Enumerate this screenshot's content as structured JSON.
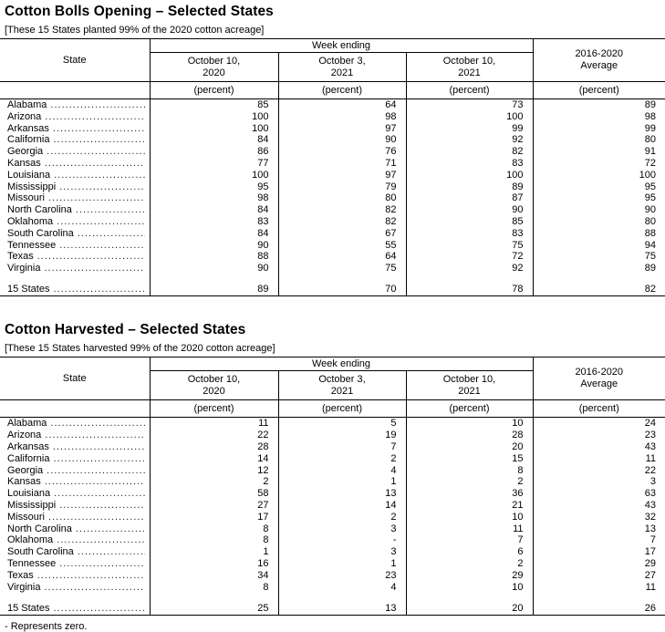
{
  "report": {
    "footnote": "- Represents zero."
  },
  "tables": [
    {
      "title": "Cotton Bolls Opening – Selected States",
      "subtitle": "[These 15 States planted 99% of the 2020 cotton acreage]",
      "header": {
        "state_label": "State",
        "week_ending_label": "Week ending",
        "date_columns": [
          "October 10,\n2020",
          "October 3,\n2021",
          "October 10,\n2021"
        ],
        "average_label": "2016-2020\nAverage",
        "unit_label": "(percent)"
      },
      "rows": [
        {
          "state": "Alabama",
          "values": [
            "85",
            "64",
            "73",
            "89"
          ]
        },
        {
          "state": "Arizona",
          "values": [
            "100",
            "98",
            "100",
            "98"
          ]
        },
        {
          "state": "Arkansas",
          "values": [
            "100",
            "97",
            "99",
            "99"
          ]
        },
        {
          "state": "California",
          "values": [
            "84",
            "90",
            "92",
            "80"
          ]
        },
        {
          "state": "Georgia",
          "values": [
            "86",
            "76",
            "82",
            "91"
          ]
        },
        {
          "state": "Kansas",
          "values": [
            "77",
            "71",
            "83",
            "72"
          ]
        },
        {
          "state": "Louisiana",
          "values": [
            "100",
            "97",
            "100",
            "100"
          ]
        },
        {
          "state": "Mississippi",
          "values": [
            "95",
            "79",
            "89",
            "95"
          ]
        },
        {
          "state": "Missouri",
          "values": [
            "98",
            "80",
            "87",
            "95"
          ]
        },
        {
          "state": "North Carolina",
          "values": [
            "84",
            "82",
            "90",
            "90"
          ]
        },
        {
          "state": "Oklahoma",
          "values": [
            "83",
            "82",
            "85",
            "80"
          ]
        },
        {
          "state": "South Carolina",
          "values": [
            "84",
            "67",
            "83",
            "88"
          ]
        },
        {
          "state": "Tennessee",
          "values": [
            "90",
            "55",
            "75",
            "94"
          ]
        },
        {
          "state": "Texas",
          "values": [
            "88",
            "64",
            "72",
            "75"
          ]
        },
        {
          "state": "Virginia",
          "values": [
            "90",
            "75",
            "92",
            "89"
          ]
        }
      ],
      "total": {
        "state": "15 States",
        "values": [
          "89",
          "70",
          "78",
          "82"
        ]
      }
    },
    {
      "title": "Cotton Harvested – Selected States",
      "subtitle": "[These 15 States harvested 99% of the 2020 cotton acreage]",
      "header": {
        "state_label": "State",
        "week_ending_label": "Week ending",
        "date_columns": [
          "October 10,\n2020",
          "October 3,\n2021",
          "October 10,\n2021"
        ],
        "average_label": "2016-2020\nAverage",
        "unit_label": "(percent)"
      },
      "rows": [
        {
          "state": "Alabama",
          "values": [
            "11",
            "5",
            "10",
            "24"
          ]
        },
        {
          "state": "Arizona",
          "values": [
            "22",
            "19",
            "28",
            "23"
          ]
        },
        {
          "state": "Arkansas",
          "values": [
            "28",
            "7",
            "20",
            "43"
          ]
        },
        {
          "state": "California",
          "values": [
            "14",
            "2",
            "15",
            "11"
          ]
        },
        {
          "state": "Georgia",
          "values": [
            "12",
            "4",
            "8",
            "22"
          ]
        },
        {
          "state": "Kansas",
          "values": [
            "2",
            "1",
            "2",
            "3"
          ]
        },
        {
          "state": "Louisiana",
          "values": [
            "58",
            "13",
            "36",
            "63"
          ]
        },
        {
          "state": "Mississippi",
          "values": [
            "27",
            "14",
            "21",
            "43"
          ]
        },
        {
          "state": "Missouri",
          "values": [
            "17",
            "2",
            "10",
            "32"
          ]
        },
        {
          "state": "North Carolina",
          "values": [
            "8",
            "3",
            "11",
            "13"
          ]
        },
        {
          "state": "Oklahoma",
          "values": [
            "8",
            "-",
            "7",
            "7"
          ]
        },
        {
          "state": "South Carolina",
          "values": [
            "1",
            "3",
            "6",
            "17"
          ]
        },
        {
          "state": "Tennessee",
          "values": [
            "16",
            "1",
            "2",
            "29"
          ]
        },
        {
          "state": "Texas",
          "values": [
            "34",
            "23",
            "29",
            "27"
          ]
        },
        {
          "state": "Virginia",
          "values": [
            "8",
            "4",
            "10",
            "11"
          ]
        }
      ],
      "total": {
        "state": "15 States",
        "values": [
          "25",
          "13",
          "20",
          "26"
        ]
      }
    }
  ]
}
